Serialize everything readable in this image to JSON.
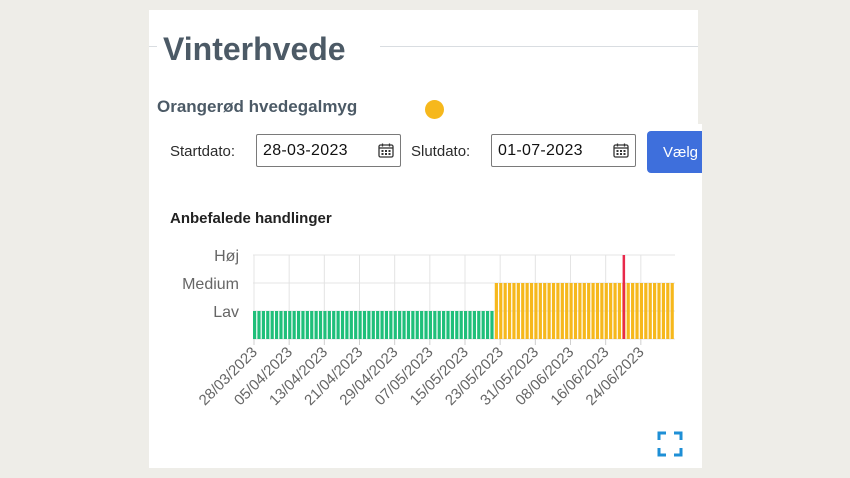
{
  "title": "Vinterhvede",
  "pest": {
    "name": "Orangerød hvedegalmyg",
    "status_color": "#f6b81c"
  },
  "filters": {
    "start_label": "Startdato:",
    "start_value": "28-03-2023",
    "end_label": "Slutdato:",
    "end_value": "01-07-2023",
    "submit_label": "Vælg"
  },
  "section_title": "Anbefalede handlinger",
  "icons": {
    "calendar": "calendar-icon",
    "expand": "fullscreen-expand-icon"
  },
  "chart_data": {
    "type": "bar",
    "title": "",
    "xlabel": "",
    "ylabel": "",
    "y_categories": [
      "Lav",
      "Medium",
      "Høj"
    ],
    "x_tick_labels": [
      "28/03/2023",
      "05/04/2023",
      "13/04/2023",
      "21/04/2023",
      "29/04/2023",
      "07/05/2023",
      "15/05/2023",
      "23/05/2023",
      "31/05/2023",
      "08/06/2023",
      "16/06/2023",
      "24/06/2023"
    ],
    "x_start": "28/03/2023",
    "x_end": "01/07/2023",
    "series": [
      {
        "from": "28/03/2023",
        "to": "21/05/2023",
        "level": "Lav",
        "color": "#1fbf7a"
      },
      {
        "from": "22/05/2023",
        "to": "01/07/2023",
        "level": "Medium",
        "color": "#f6b81c"
      }
    ],
    "marker": {
      "date": "20/06/2023",
      "color": "#e8294b"
    },
    "grid": true
  }
}
